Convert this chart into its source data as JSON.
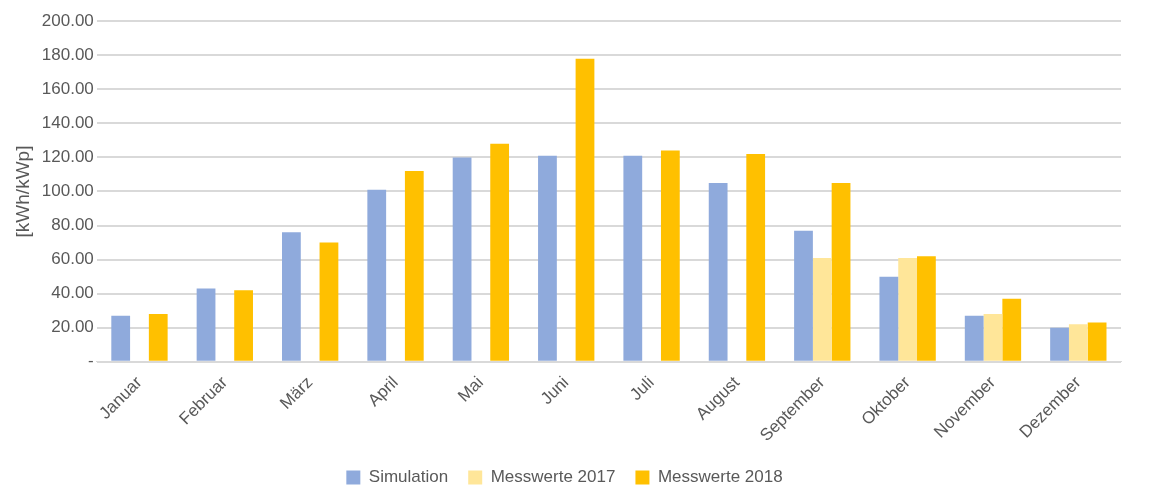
{
  "chart_data": {
    "type": "bar",
    "ylabel": "[kWh/kWp]",
    "categories": [
      "Januar",
      "Februar",
      "März",
      "April",
      "Mai",
      "Juni",
      "Juli",
      "August",
      "September",
      "Oktober",
      "November",
      "Dezember"
    ],
    "series": [
      {
        "name": "Simulation",
        "color": "#8faadc",
        "values": [
          27,
          43,
          76,
          101,
          120,
          121,
          121,
          105,
          77,
          50,
          27,
          20
        ]
      },
      {
        "name": "Messwerte 2017",
        "color": "#ffe699",
        "values": [
          null,
          null,
          null,
          null,
          null,
          null,
          null,
          null,
          61,
          61,
          28,
          22
        ]
      },
      {
        "name": "Messwerte 2018",
        "color": "#ffc000",
        "values": [
          28,
          42,
          70,
          112,
          128,
          178,
          124,
          122,
          105,
          62,
          37,
          23
        ]
      }
    ],
    "ylim": [
      0,
      200
    ],
    "yticks": [
      {
        "value": 0,
        "label": "-"
      },
      {
        "value": 20,
        "label": "20.00"
      },
      {
        "value": 40,
        "label": "40.00"
      },
      {
        "value": 60,
        "label": "60.00"
      },
      {
        "value": 80,
        "label": "80.00"
      },
      {
        "value": 100,
        "label": "100.00"
      },
      {
        "value": 120,
        "label": "120.00"
      },
      {
        "value": 140,
        "label": "140.00"
      },
      {
        "value": 160,
        "label": "160.00"
      },
      {
        "value": 180,
        "label": "180.00"
      },
      {
        "value": 200,
        "label": "200.00"
      }
    ],
    "grid": "y",
    "legend": "bottom"
  }
}
